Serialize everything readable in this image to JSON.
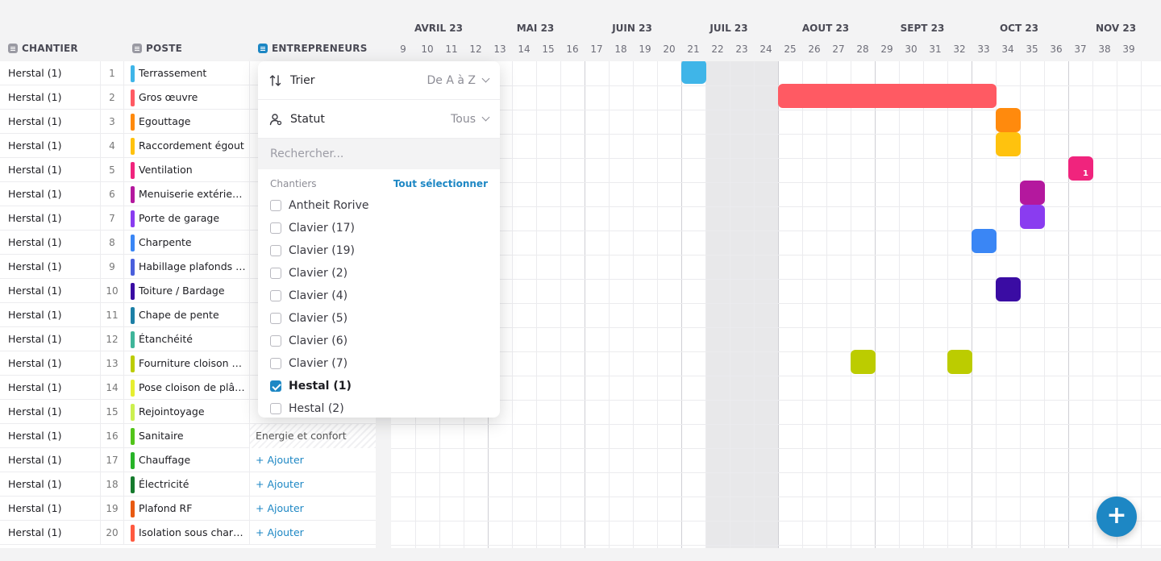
{
  "headers": {
    "chantier": "CHANTIER",
    "poste": "POSTE",
    "entrepreneurs": "ENTREPRENEURS",
    "icon_colors": {
      "chantier": "#9a9aa3",
      "poste": "#9a9aa3",
      "entrepreneurs": "#1d87c4"
    }
  },
  "timeline": {
    "months": [
      "AVRIL 23",
      "MAI 23",
      "JUIN 23",
      "JUIL 23",
      "AOUT 23",
      "SEPT 23",
      "OCT 23",
      "NOV 23"
    ],
    "weeks": [
      "9",
      "10",
      "11",
      "12",
      "13",
      "14",
      "15",
      "16",
      "17",
      "18",
      "19",
      "20",
      "21",
      "22",
      "23",
      "24",
      "25",
      "26",
      "27",
      "28",
      "29",
      "30",
      "31",
      "32",
      "33",
      "34",
      "35",
      "36",
      "37",
      "38",
      "39"
    ]
  },
  "rows": [
    {
      "chantier": "Herstal (1)",
      "num": "1",
      "poste": "Terrassement",
      "color": "#3fb5e8",
      "ent": ""
    },
    {
      "chantier": "Herstal (1)",
      "num": "2",
      "poste": "Gros œuvre",
      "color": "#ff5a63",
      "ent": ""
    },
    {
      "chantier": "Herstal (1)",
      "num": "3",
      "poste": "Egouttage",
      "color": "#ff8a0d",
      "ent": ""
    },
    {
      "chantier": "Herstal (1)",
      "num": "4",
      "poste": "Raccordement égout",
      "color": "#ffc20e",
      "ent": ""
    },
    {
      "chantier": "Herstal (1)",
      "num": "5",
      "poste": "Ventilation",
      "color": "#f0247d",
      "ent": ""
    },
    {
      "chantier": "Herstal (1)",
      "num": "6",
      "poste": "Menuiserie extérieure",
      "color": "#b4189e",
      "ent": ""
    },
    {
      "chantier": "Herstal (1)",
      "num": "7",
      "poste": "Porte de garage",
      "color": "#8a3cf0",
      "ent": ""
    },
    {
      "chantier": "Herstal (1)",
      "num": "8",
      "poste": "Charpente",
      "color": "#3a86f5",
      "ent": ""
    },
    {
      "chantier": "Herstal (1)",
      "num": "9",
      "poste": "Habillage plafonds e...",
      "color": "#4a5fdc",
      "ent": ""
    },
    {
      "chantier": "Herstal (1)",
      "num": "10",
      "poste": "Toiture / Bardage",
      "color": "#3a0ca3",
      "ent": ""
    },
    {
      "chantier": "Herstal (1)",
      "num": "11",
      "poste": "Chape de pente",
      "color": "#1c7fa6",
      "ent": ""
    },
    {
      "chantier": "Herstal (1)",
      "num": "12",
      "poste": "Étanchéité",
      "color": "#3fb59a",
      "ent": ""
    },
    {
      "chantier": "Herstal (1)",
      "num": "13",
      "poste": "Fourniture cloison d...",
      "color": "#bccc00",
      "ent": ""
    },
    {
      "chantier": "Herstal (1)",
      "num": "14",
      "poste": "Pose cloison de plâtre",
      "color": "#e6ee30",
      "ent": ""
    },
    {
      "chantier": "Herstal (1)",
      "num": "15",
      "poste": "Rejointoyage",
      "color": "#ccf050",
      "ent": ""
    },
    {
      "chantier": "Herstal (1)",
      "num": "16",
      "poste": "Sanitaire",
      "color": "#52c41a",
      "ent": "Energie et confort",
      "hatched": true
    },
    {
      "chantier": "Herstal (1)",
      "num": "17",
      "poste": "Chauffage",
      "color": "#28b328",
      "ent": "+ Ajouter"
    },
    {
      "chantier": "Herstal (1)",
      "num": "18",
      "poste": "Électricité",
      "color": "#157a2d",
      "ent": "+ Ajouter"
    },
    {
      "chantier": "Herstal (1)",
      "num": "19",
      "poste": "Plafond RF",
      "color": "#e85a12",
      "ent": "+ Ajouter"
    },
    {
      "chantier": "Herstal (1)",
      "num": "20",
      "poste": "Isolation sous charp...",
      "color": "#ff5a40",
      "ent": "+ Ajouter"
    }
  ],
  "gantt_bars": [
    {
      "row": 0,
      "week": "21",
      "span_weeks": 1,
      "color": "#3fb5e8",
      "label": ""
    },
    {
      "row": 1,
      "week": "25",
      "span_weeks": 9,
      "color": "#ff5a63",
      "label": ""
    },
    {
      "row": 2,
      "week": "34",
      "span_weeks": 1,
      "color": "#ff8a0d",
      "label": ""
    },
    {
      "row": 3,
      "week": "34",
      "span_weeks": 1,
      "color": "#ffc20e",
      "label": ""
    },
    {
      "row": 4,
      "week": "37",
      "span_weeks": 1,
      "color": "#f0247d",
      "label": "1"
    },
    {
      "row": 5,
      "week": "35",
      "span_weeks": 1,
      "color": "#b4189e",
      "label": ""
    },
    {
      "row": 6,
      "week": "35",
      "span_weeks": 1,
      "color": "#8a3cf0",
      "label": ""
    },
    {
      "row": 7,
      "week": "33",
      "span_weeks": 1,
      "color": "#3a86f5",
      "label": ""
    },
    {
      "row": 9,
      "week": "34",
      "span_weeks": 1,
      "color": "#3a0ca3",
      "label": ""
    },
    {
      "row": 12,
      "week": "28",
      "span_weeks": 1,
      "color": "#bccc00",
      "label": ""
    },
    {
      "row": 12,
      "week": "32",
      "span_weeks": 1,
      "color": "#bccc00",
      "label": ""
    }
  ],
  "dropdown": {
    "sort_label": "Trier",
    "sort_value": "De A à Z",
    "status_label": "Statut",
    "status_value": "Tous",
    "search_placeholder": "Rechercher...",
    "section_label": "Chantiers",
    "select_all": "Tout sélectionner",
    "options": [
      {
        "label": "Antheit Rorive",
        "checked": false
      },
      {
        "label": "Clavier (17)",
        "checked": false
      },
      {
        "label": "Clavier (19)",
        "checked": false
      },
      {
        "label": "Clavier (2)",
        "checked": false
      },
      {
        "label": "Clavier (4)",
        "checked": false
      },
      {
        "label": "Clavier (5)",
        "checked": false
      },
      {
        "label": "Clavier (6)",
        "checked": false
      },
      {
        "label": "Clavier (7)",
        "checked": false
      },
      {
        "label": "Hestal (1)",
        "checked": true
      },
      {
        "label": "Hestal (2)",
        "checked": false
      }
    ]
  },
  "fab": {
    "label": "+",
    "color": "#1d87c4"
  }
}
